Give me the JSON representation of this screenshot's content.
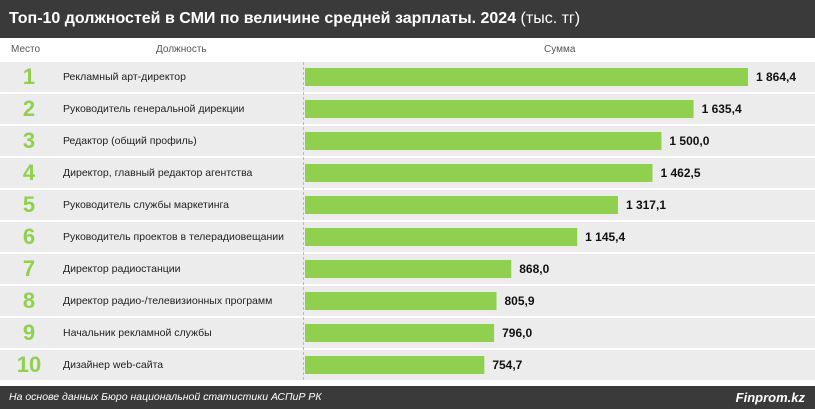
{
  "header": {
    "title": "Топ-10 должностей в СМИ по величине средней зарплаты. 2024",
    "unit": "(тыс. тг)"
  },
  "columns": {
    "rank": "Место",
    "position": "Должность",
    "amount": "Сумма"
  },
  "chart_data": {
    "type": "bar",
    "orientation": "horizontal",
    "title": "Топ-10 должностей в СМИ по величине средней зарплаты. 2024",
    "unit": "(тыс. тг)",
    "ranks": [
      "1",
      "2",
      "3",
      "4",
      "5",
      "6",
      "7",
      "8",
      "9",
      "10"
    ],
    "categories": [
      "Рекламный арт-директор",
      "Руководитель генеральной дирекции",
      "Редактор (общий профиль)",
      "Директор, главный редактор агентства",
      "Руководитель службы маркетинга",
      "Руководитель проектов в телерадиовещании",
      "Директор радиостанции",
      "Директор радио-/телевизионных программ",
      "Начальник рекламной службы",
      "Дизайнер web-сайта"
    ],
    "values": [
      1864.4,
      1635.4,
      1500.0,
      1462.5,
      1317.1,
      1145.4,
      868.0,
      805.9,
      796.0,
      754.7
    ],
    "value_labels": [
      "1 864,4",
      "1 635,4",
      "1 500,0",
      "1 462,5",
      "1 317,1",
      "1 145,4",
      "868,0",
      "805,9",
      "796,0",
      "754,7"
    ],
    "xlim": [
      0,
      1864.4
    ],
    "grid": false,
    "bar_color": "#8fd14f",
    "rank_color": "#8fd14f"
  },
  "footer": {
    "source": "На основе данных Бюро национальной статистики АСПиР РК",
    "brand": "Finprom.kz"
  }
}
